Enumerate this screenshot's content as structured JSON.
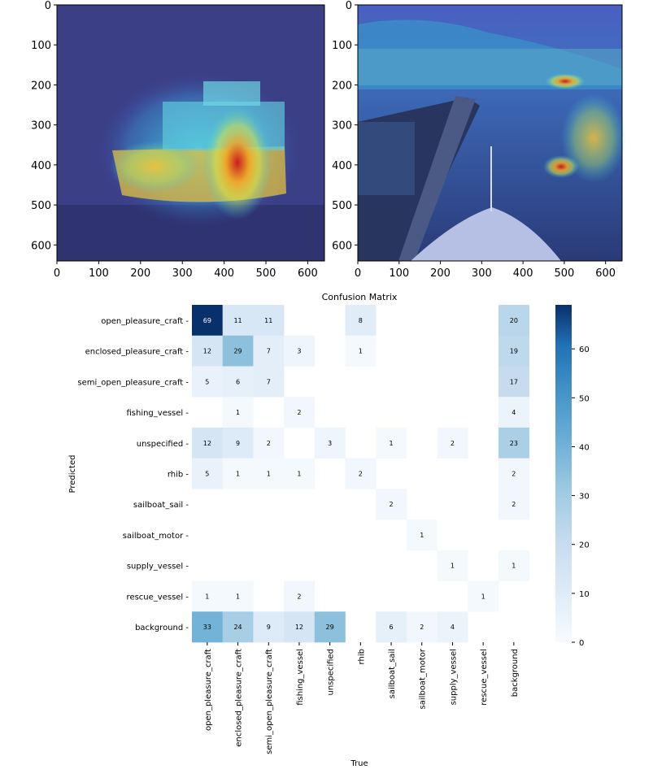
{
  "chart_data": [
    {
      "type": "heatmap",
      "name": "attention-map-cargo-ship",
      "x_ticks": [
        0,
        100,
        200,
        300,
        400,
        500,
        600
      ],
      "y_ticks": [
        0,
        100,
        200,
        300,
        400,
        500,
        600
      ],
      "xlim": [
        0,
        640
      ],
      "ylim": [
        640,
        0
      ],
      "colormap": "jet"
    },
    {
      "type": "heatmap",
      "name": "attention-map-harbor-bow",
      "x_ticks": [
        0,
        100,
        200,
        300,
        400,
        500,
        600
      ],
      "y_ticks": [
        0,
        100,
        200,
        300,
        400,
        500,
        600
      ],
      "xlim": [
        0,
        640
      ],
      "ylim": [
        640,
        0
      ],
      "colormap": "jet"
    },
    {
      "type": "heatmap",
      "title": "Confusion Matrix",
      "xlabel": "True",
      "ylabel": "Predicted",
      "columns": [
        "open_pleasure_craft",
        "enclosed_pleasure_craft",
        "semi_open_pleasure_craft",
        "fishing_vessel",
        "unspecified",
        "rhib",
        "sailboat_sail",
        "sailboat_motor",
        "supply_vessel",
        "rescue_vessel",
        "background"
      ],
      "rows": [
        "open_pleasure_craft",
        "enclosed_pleasure_craft",
        "semi_open_pleasure_craft",
        "fishing_vessel",
        "unspecified",
        "rhib",
        "sailboat_sail",
        "sailboat_motor",
        "supply_vessel",
        "rescue_vessel",
        "background"
      ],
      "values": [
        [
          69,
          11,
          11,
          null,
          null,
          8,
          null,
          null,
          null,
          null,
          20
        ],
        [
          12,
          29,
          7,
          3,
          null,
          1,
          null,
          null,
          null,
          null,
          19
        ],
        [
          5,
          6,
          7,
          null,
          null,
          null,
          null,
          null,
          null,
          null,
          17
        ],
        [
          null,
          1,
          null,
          2,
          null,
          null,
          null,
          null,
          null,
          null,
          4
        ],
        [
          12,
          9,
          2,
          null,
          3,
          null,
          1,
          null,
          2,
          null,
          23
        ],
        [
          5,
          1,
          1,
          1,
          null,
          2,
          null,
          null,
          null,
          null,
          2
        ],
        [
          null,
          null,
          null,
          null,
          null,
          null,
          2,
          null,
          null,
          null,
          2
        ],
        [
          null,
          null,
          null,
          null,
          null,
          null,
          null,
          1,
          null,
          null,
          null
        ],
        [
          null,
          null,
          null,
          null,
          null,
          null,
          null,
          null,
          1,
          null,
          1
        ],
        [
          1,
          1,
          null,
          2,
          null,
          null,
          null,
          null,
          null,
          1,
          null
        ],
        [
          33,
          24,
          9,
          12,
          29,
          null,
          6,
          2,
          4,
          null,
          null
        ]
      ],
      "colorbar_ticks": [
        0,
        10,
        20,
        30,
        40,
        50,
        60
      ],
      "vmin": 0,
      "vmax": 69,
      "colormap": "Blues"
    }
  ]
}
